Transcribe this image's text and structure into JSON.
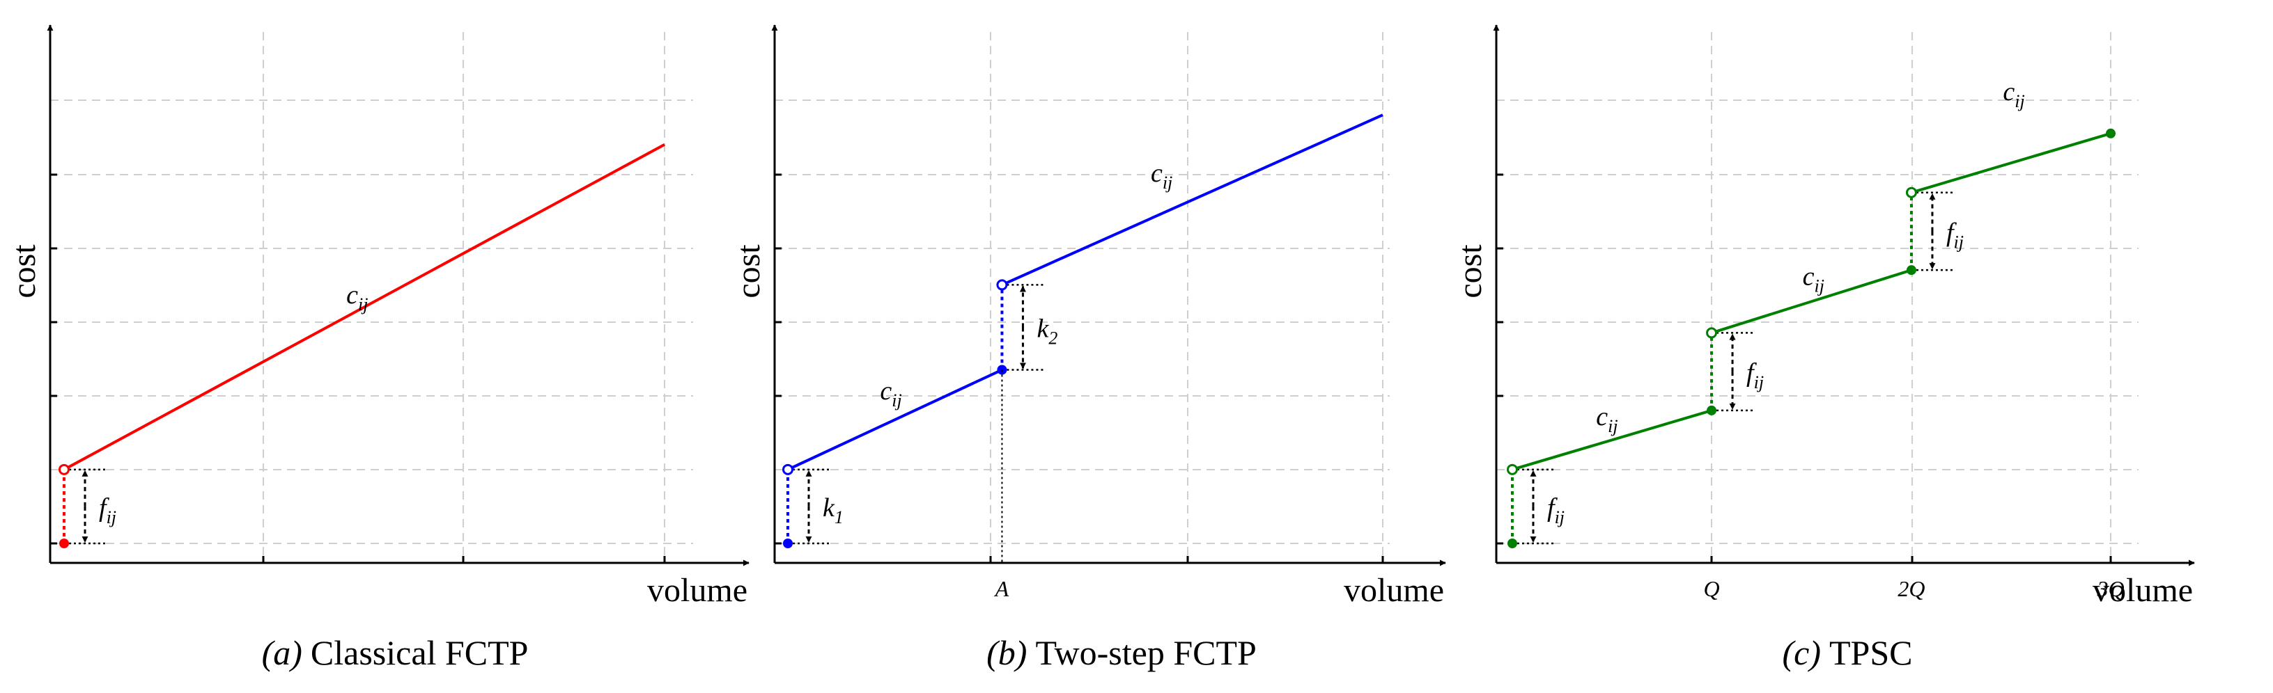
{
  "chart_data": [
    {
      "type": "line",
      "caption_prefix": "(a)",
      "caption_text": "Classical FCTP",
      "xlabel": "volume",
      "ylabel": "cost",
      "grid": true,
      "xlim": [
        0,
        1.1
      ],
      "ylim": [
        0,
        1.45
      ],
      "x_tick_labels": [],
      "color": "#ff0000",
      "segments": [
        {
          "x": [
            0,
            1.0
          ],
          "y": [
            0.2,
            1.08
          ],
          "start_open": true,
          "end_filled": false
        }
      ],
      "jumps": [
        {
          "x": 0,
          "from": 0,
          "to": 0.2,
          "label": "f",
          "label_sub": "ij"
        }
      ],
      "slope_labels": [
        {
          "text": "c",
          "sub": "ij",
          "x": 0.47,
          "y": 0.65
        }
      ]
    },
    {
      "type": "line",
      "caption_prefix": "(b)",
      "caption_text": "Two-step FCTP",
      "xlabel": "volume",
      "ylabel": "cost",
      "grid": true,
      "xlim": [
        0,
        1.1
      ],
      "ylim": [
        0,
        1.45
      ],
      "x_tick_labels": [
        {
          "x": 0.36,
          "text": "A"
        }
      ],
      "color": "#0000ff",
      "segments": [
        {
          "x": [
            0,
            0.36
          ],
          "y": [
            0.2,
            0.47
          ],
          "start_open": true,
          "end_filled": true
        },
        {
          "x": [
            0.36,
            1.0
          ],
          "y": [
            0.7,
            1.16
          ],
          "start_open": true,
          "end_filled": false
        }
      ],
      "jumps": [
        {
          "x": 0,
          "from": 0,
          "to": 0.2,
          "label": "k",
          "label_sub": "1"
        },
        {
          "x": 0.36,
          "from": 0.47,
          "to": 0.7,
          "label": "k",
          "label_sub": "2"
        }
      ],
      "slope_labels": [
        {
          "text": "c",
          "sub": "ij",
          "x": 0.155,
          "y": 0.39
        },
        {
          "text": "c",
          "sub": "ij",
          "x": 0.61,
          "y": 0.98
        }
      ]
    },
    {
      "type": "line",
      "caption_prefix": "(c)",
      "caption_text": "TPSC",
      "xlabel": "volume",
      "ylabel": "cost",
      "grid": true,
      "xlim": [
        0,
        1.1
      ],
      "ylim": [
        0,
        1.45
      ],
      "x_tick_labels": [
        {
          "x": 0.333,
          "text": "Q"
        },
        {
          "x": 0.667,
          "text": "2Q"
        },
        {
          "x": 1.0,
          "text": "3Q"
        }
      ],
      "color": "#008000",
      "segments": [
        {
          "x": [
            0,
            0.333
          ],
          "y": [
            0.2,
            0.36
          ],
          "start_open": true,
          "end_filled": true
        },
        {
          "x": [
            0.333,
            0.667
          ],
          "y": [
            0.57,
            0.74
          ],
          "start_open": true,
          "end_filled": true
        },
        {
          "x": [
            0.667,
            1.0
          ],
          "y": [
            0.95,
            1.11
          ],
          "start_open": true,
          "end_filled": true
        }
      ],
      "jumps": [
        {
          "x": 0,
          "from": 0,
          "to": 0.2,
          "label": "f",
          "label_sub": "ij"
        },
        {
          "x": 0.333,
          "from": 0.36,
          "to": 0.57,
          "label": "f",
          "label_sub": "ij"
        },
        {
          "x": 0.667,
          "from": 0.74,
          "to": 0.95,
          "label": "f",
          "label_sub": "ij"
        }
      ],
      "slope_labels": [
        {
          "text": "c",
          "sub": "ij",
          "x": 0.14,
          "y": 0.32
        },
        {
          "text": "c",
          "sub": "ij",
          "x": 0.485,
          "y": 0.7
        },
        {
          "text": "c",
          "sub": "ij",
          "x": 0.82,
          "y": 1.2
        }
      ]
    }
  ]
}
